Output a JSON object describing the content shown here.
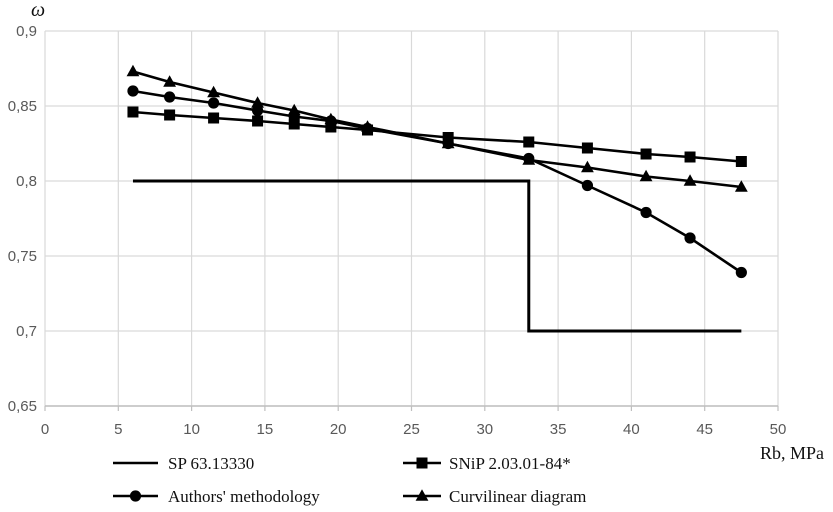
{
  "chart_data": {
    "type": "line",
    "title": "",
    "xlabel": "Rb, MPa",
    "ylabel": "ω",
    "xlim": [
      0,
      50
    ],
    "ylim": [
      0.65,
      0.9
    ],
    "x_ticks": [
      0,
      5,
      10,
      15,
      20,
      25,
      30,
      35,
      40,
      45,
      50
    ],
    "x_tick_labels": [
      "0",
      "5",
      "10",
      "15",
      "20",
      "25",
      "30",
      "35",
      "40",
      "45",
      "50"
    ],
    "y_ticks": [
      0.9,
      0.85,
      0.8,
      0.75,
      0.7,
      0.65
    ],
    "y_tick_labels": [
      "0,9",
      "0,85",
      "0,8",
      "0,75",
      "0,7",
      "0,65"
    ],
    "grid": true,
    "legend_position": "bottom",
    "colors": {
      "line": "#000000",
      "grid": "#d9d9d9",
      "axis": "#bfbfbf",
      "tick_text": "#595959",
      "legend_text": "#111111"
    },
    "series": [
      {
        "key": "sp-63-13330",
        "name": "SP 63.13330",
        "marker": "none",
        "shape": "step",
        "x": [
          6,
          33,
          33,
          47.5
        ],
        "y": [
          0.8,
          0.8,
          0.7,
          0.7
        ]
      },
      {
        "key": "snip-2-03-01-84",
        "name": "SNiP 2.03.01-84*",
        "marker": "square",
        "shape": "line",
        "x": [
          6,
          8.5,
          11.5,
          14.5,
          17,
          19.5,
          22,
          27.5,
          33,
          37,
          41,
          44,
          47.5
        ],
        "y": [
          0.846,
          0.844,
          0.842,
          0.84,
          0.838,
          0.836,
          0.834,
          0.829,
          0.826,
          0.822,
          0.818,
          0.816,
          0.813
        ]
      },
      {
        "key": "authors-methodology",
        "name": "Authors' methodology",
        "marker": "circle",
        "shape": "line",
        "x": [
          6,
          8.5,
          11.5,
          14.5,
          17,
          19.5,
          22,
          27.5,
          33,
          37,
          41,
          44,
          47.5
        ],
        "y": [
          0.86,
          0.856,
          0.852,
          0.847,
          0.843,
          0.84,
          0.835,
          0.825,
          0.815,
          0.797,
          0.779,
          0.762,
          0.739
        ]
      },
      {
        "key": "curvilinear-diagram",
        "name": "Curvilinear diagram",
        "marker": "triangle",
        "shape": "line",
        "x": [
          6,
          8.5,
          11.5,
          14.5,
          17,
          19.5,
          22,
          27.5,
          33,
          37,
          41,
          44,
          47.5
        ],
        "y": [
          0.873,
          0.866,
          0.859,
          0.852,
          0.847,
          0.841,
          0.836,
          0.825,
          0.814,
          0.809,
          0.803,
          0.8,
          0.796
        ]
      }
    ]
  }
}
